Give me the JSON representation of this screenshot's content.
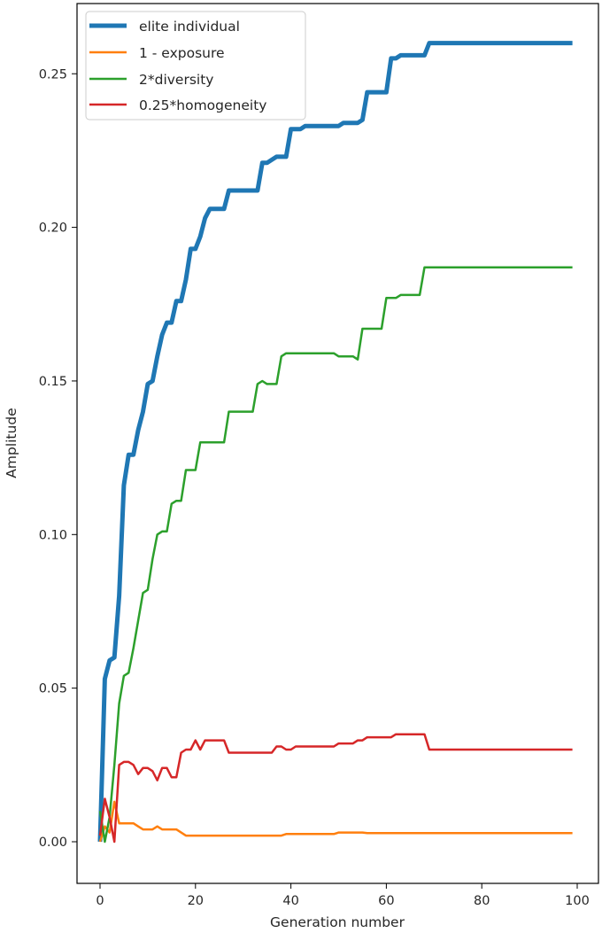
{
  "chart_data": {
    "type": "line",
    "title": "",
    "xlabel": "Generation number",
    "ylabel": "Amplitude",
    "xlim": [
      -5,
      104
    ],
    "ylim": [
      -0.013,
      0.272
    ],
    "xticks": [
      0,
      20,
      40,
      60,
      80,
      100
    ],
    "xtick_labels": [
      "0",
      "20",
      "40",
      "60",
      "80",
      "100"
    ],
    "yticks": [
      0.0,
      0.05,
      0.1,
      0.15,
      0.2,
      0.25
    ],
    "ytick_labels": [
      "0.00",
      "0.05",
      "0.10",
      "0.15",
      "0.20",
      "0.25"
    ],
    "grid": false,
    "legend_position": "upper left",
    "series": [
      {
        "name": "elite individual",
        "color": "#1f77b4",
        "linewidth": 5,
        "points": [
          [
            0,
            0.0
          ],
          [
            1,
            0.053
          ],
          [
            2,
            0.059
          ],
          [
            3,
            0.06
          ],
          [
            4,
            0.08
          ],
          [
            5,
            0.116
          ],
          [
            6,
            0.126
          ],
          [
            7,
            0.126
          ],
          [
            8,
            0.134
          ],
          [
            9,
            0.14
          ],
          [
            10,
            0.149
          ],
          [
            11,
            0.15
          ],
          [
            12,
            0.158
          ],
          [
            13,
            0.165
          ],
          [
            14,
            0.169
          ],
          [
            15,
            0.169
          ],
          [
            16,
            0.176
          ],
          [
            17,
            0.176
          ],
          [
            18,
            0.183
          ],
          [
            19,
            0.193
          ],
          [
            20,
            0.193
          ],
          [
            21,
            0.197
          ],
          [
            22,
            0.203
          ],
          [
            23,
            0.206
          ],
          [
            24,
            0.206
          ],
          [
            25,
            0.206
          ],
          [
            26,
            0.206
          ],
          [
            27,
            0.212
          ],
          [
            28,
            0.212
          ],
          [
            29,
            0.212
          ],
          [
            30,
            0.212
          ],
          [
            31,
            0.212
          ],
          [
            32,
            0.212
          ],
          [
            33,
            0.212
          ],
          [
            34,
            0.221
          ],
          [
            35,
            0.221
          ],
          [
            36,
            0.222
          ],
          [
            37,
            0.223
          ],
          [
            38,
            0.223
          ],
          [
            39,
            0.223
          ],
          [
            40,
            0.232
          ],
          [
            41,
            0.232
          ],
          [
            42,
            0.232
          ],
          [
            43,
            0.233
          ],
          [
            44,
            0.233
          ],
          [
            45,
            0.233
          ],
          [
            46,
            0.233
          ],
          [
            47,
            0.233
          ],
          [
            48,
            0.233
          ],
          [
            49,
            0.233
          ],
          [
            50,
            0.233
          ],
          [
            51,
            0.234
          ],
          [
            52,
            0.234
          ],
          [
            53,
            0.234
          ],
          [
            54,
            0.234
          ],
          [
            55,
            0.235
          ],
          [
            56,
            0.244
          ],
          [
            57,
            0.244
          ],
          [
            58,
            0.244
          ],
          [
            59,
            0.244
          ],
          [
            60,
            0.244
          ],
          [
            61,
            0.255
          ],
          [
            62,
            0.255
          ],
          [
            63,
            0.256
          ],
          [
            64,
            0.256
          ],
          [
            65,
            0.256
          ],
          [
            66,
            0.256
          ],
          [
            67,
            0.256
          ],
          [
            68,
            0.256
          ],
          [
            69,
            0.26
          ],
          [
            70,
            0.26
          ],
          [
            80,
            0.26
          ],
          [
            90,
            0.26
          ],
          [
            99,
            0.26
          ]
        ]
      },
      {
        "name": "1 - exposure",
        "color": "#ff7f0e",
        "linewidth": 2.5,
        "points": [
          [
            0,
            0.0
          ],
          [
            1,
            0.005
          ],
          [
            2,
            0.003
          ],
          [
            3,
            0.013
          ],
          [
            4,
            0.006
          ],
          [
            5,
            0.006
          ],
          [
            6,
            0.006
          ],
          [
            7,
            0.006
          ],
          [
            8,
            0.005
          ],
          [
            9,
            0.004
          ],
          [
            10,
            0.004
          ],
          [
            11,
            0.004
          ],
          [
            12,
            0.005
          ],
          [
            13,
            0.004
          ],
          [
            14,
            0.004
          ],
          [
            15,
            0.004
          ],
          [
            16,
            0.004
          ],
          [
            17,
            0.003
          ],
          [
            18,
            0.002
          ],
          [
            20,
            0.002
          ],
          [
            30,
            0.002
          ],
          [
            38,
            0.002
          ],
          [
            39,
            0.0025
          ],
          [
            48,
            0.0025
          ],
          [
            49,
            0.0025
          ],
          [
            50,
            0.003
          ],
          [
            55,
            0.003
          ],
          [
            56,
            0.0028
          ],
          [
            60,
            0.0028
          ],
          [
            70,
            0.0028
          ],
          [
            80,
            0.0028
          ],
          [
            90,
            0.0028
          ],
          [
            99,
            0.0028
          ]
        ]
      },
      {
        "name": "2*diversity",
        "color": "#2ca02c",
        "linewidth": 2.5,
        "points": [
          [
            0,
            0.01
          ],
          [
            1,
            0.0
          ],
          [
            2,
            0.008
          ],
          [
            3,
            0.025
          ],
          [
            4,
            0.045
          ],
          [
            5,
            0.054
          ],
          [
            6,
            0.055
          ],
          [
            7,
            0.063
          ],
          [
            8,
            0.072
          ],
          [
            9,
            0.081
          ],
          [
            10,
            0.082
          ],
          [
            11,
            0.092
          ],
          [
            12,
            0.1
          ],
          [
            13,
            0.101
          ],
          [
            14,
            0.101
          ],
          [
            15,
            0.11
          ],
          [
            16,
            0.111
          ],
          [
            17,
            0.111
          ],
          [
            18,
            0.121
          ],
          [
            19,
            0.121
          ],
          [
            20,
            0.121
          ],
          [
            21,
            0.13
          ],
          [
            22,
            0.13
          ],
          [
            23,
            0.13
          ],
          [
            24,
            0.13
          ],
          [
            25,
            0.13
          ],
          [
            26,
            0.13
          ],
          [
            27,
            0.14
          ],
          [
            28,
            0.14
          ],
          [
            29,
            0.14
          ],
          [
            30,
            0.14
          ],
          [
            31,
            0.14
          ],
          [
            32,
            0.14
          ],
          [
            33,
            0.149
          ],
          [
            34,
            0.15
          ],
          [
            35,
            0.149
          ],
          [
            36,
            0.149
          ],
          [
            37,
            0.149
          ],
          [
            38,
            0.158
          ],
          [
            39,
            0.159
          ],
          [
            40,
            0.159
          ],
          [
            41,
            0.159
          ],
          [
            42,
            0.159
          ],
          [
            43,
            0.159
          ],
          [
            44,
            0.159
          ],
          [
            45,
            0.159
          ],
          [
            46,
            0.159
          ],
          [
            47,
            0.159
          ],
          [
            48,
            0.159
          ],
          [
            49,
            0.159
          ],
          [
            50,
            0.158
          ],
          [
            51,
            0.158
          ],
          [
            52,
            0.158
          ],
          [
            53,
            0.158
          ],
          [
            54,
            0.157
          ],
          [
            55,
            0.167
          ],
          [
            56,
            0.167
          ],
          [
            57,
            0.167
          ],
          [
            58,
            0.167
          ],
          [
            59,
            0.167
          ],
          [
            60,
            0.177
          ],
          [
            61,
            0.177
          ],
          [
            62,
            0.177
          ],
          [
            63,
            0.178
          ],
          [
            64,
            0.178
          ],
          [
            65,
            0.178
          ],
          [
            66,
            0.178
          ],
          [
            67,
            0.178
          ],
          [
            68,
            0.187
          ],
          [
            69,
            0.187
          ],
          [
            70,
            0.187
          ],
          [
            80,
            0.187
          ],
          [
            90,
            0.187
          ],
          [
            99,
            0.187
          ]
        ]
      },
      {
        "name": "0.25*homogeneity",
        "color": "#d62728",
        "linewidth": 2.5,
        "points": [
          [
            0,
            0.002
          ],
          [
            1,
            0.014
          ],
          [
            2,
            0.008
          ],
          [
            3,
            0.0
          ],
          [
            4,
            0.025
          ],
          [
            5,
            0.026
          ],
          [
            6,
            0.026
          ],
          [
            7,
            0.025
          ],
          [
            8,
            0.022
          ],
          [
            9,
            0.024
          ],
          [
            10,
            0.024
          ],
          [
            11,
            0.023
          ],
          [
            12,
            0.02
          ],
          [
            13,
            0.024
          ],
          [
            14,
            0.024
          ],
          [
            15,
            0.021
          ],
          [
            16,
            0.021
          ],
          [
            17,
            0.029
          ],
          [
            18,
            0.03
          ],
          [
            19,
            0.03
          ],
          [
            20,
            0.033
          ],
          [
            21,
            0.03
          ],
          [
            22,
            0.033
          ],
          [
            23,
            0.033
          ],
          [
            24,
            0.033
          ],
          [
            25,
            0.033
          ],
          [
            26,
            0.033
          ],
          [
            27,
            0.029
          ],
          [
            28,
            0.029
          ],
          [
            30,
            0.029
          ],
          [
            35,
            0.029
          ],
          [
            36,
            0.029
          ],
          [
            37,
            0.031
          ],
          [
            38,
            0.031
          ],
          [
            39,
            0.03
          ],
          [
            40,
            0.03
          ],
          [
            41,
            0.031
          ],
          [
            45,
            0.031
          ],
          [
            49,
            0.031
          ],
          [
            50,
            0.032
          ],
          [
            52,
            0.032
          ],
          [
            53,
            0.032
          ],
          [
            54,
            0.033
          ],
          [
            55,
            0.033
          ],
          [
            56,
            0.034
          ],
          [
            60,
            0.034
          ],
          [
            61,
            0.034
          ],
          [
            62,
            0.035
          ],
          [
            68,
            0.035
          ],
          [
            69,
            0.03
          ],
          [
            70,
            0.03
          ],
          [
            80,
            0.03
          ],
          [
            90,
            0.03
          ],
          [
            99,
            0.03
          ]
        ]
      }
    ]
  },
  "axes": {
    "xlabel": "Generation number",
    "ylabel": "Amplitude"
  },
  "legend": {
    "items": [
      {
        "label": "elite individual",
        "color": "#1f77b4"
      },
      {
        "label": "1 - exposure",
        "color": "#ff7f0e"
      },
      {
        "label": "2*diversity",
        "color": "#2ca02c"
      },
      {
        "label": "0.25*homogeneity",
        "color": "#d62728"
      }
    ]
  }
}
